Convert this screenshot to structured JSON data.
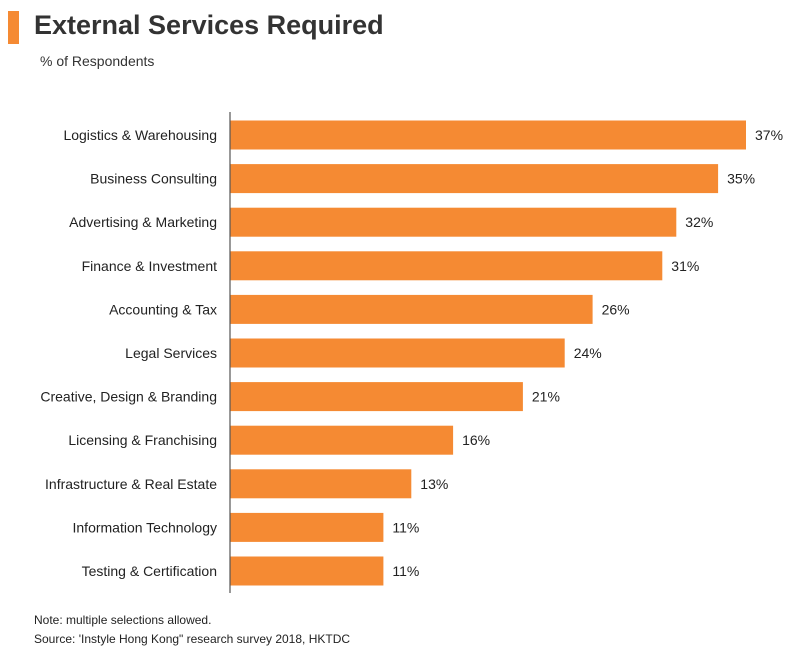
{
  "title": "External Services Required",
  "subtitle": "% of Respondents",
  "note": "Note: multiple selections allowed.",
  "source": "Source: 'Instyle Hong Kong\" research survey 2018, HKTDC",
  "colors": {
    "bar": "#F58A33",
    "accent": "#F58A33",
    "axis": "#555555"
  },
  "chart_data": {
    "type": "bar",
    "orientation": "horizontal",
    "categories": [
      "Logistics & Warehousing",
      "Business Consulting",
      "Advertising & Marketing",
      "Finance & Investment",
      "Accounting & Tax",
      "Legal Services",
      "Creative, Design & Branding",
      "Licensing & Franchising",
      "Infrastructure & Real Estate",
      "Information Technology",
      "Testing & Certification"
    ],
    "values": [
      37,
      35,
      32,
      31,
      26,
      24,
      21,
      16,
      13,
      11,
      11
    ],
    "labels": [
      "37%",
      "35%",
      "32%",
      "31%",
      "26%",
      "24%",
      "21%",
      "16%",
      "13%",
      "11%",
      "11%"
    ],
    "unit": "%",
    "xlim": [
      0,
      37
    ],
    "grid": false,
    "legend": "none"
  }
}
